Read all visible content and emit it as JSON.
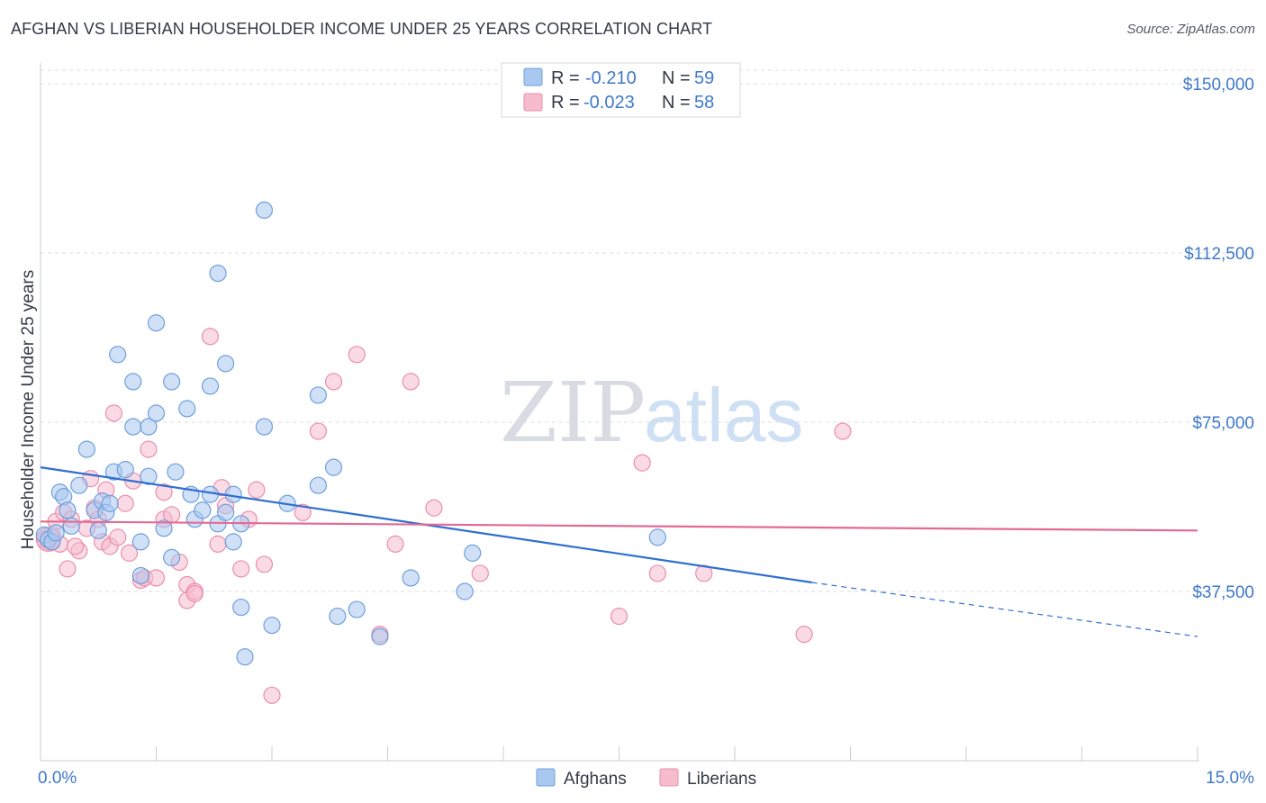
{
  "title": "AFGHAN VS LIBERIAN HOUSEHOLDER INCOME UNDER 25 YEARS CORRELATION CHART",
  "source": "Source: ZipAtlas.com",
  "watermark": {
    "zip": "ZIP",
    "atlas": "atlas"
  },
  "colors": {
    "afghans_fill": "#a9c8f0",
    "afghans_stroke": "#6f9fdc",
    "afghans_line": "#2f6fd0",
    "liberians_fill": "#f6bccd",
    "liberians_stroke": "#eb8fac",
    "liberians_line": "#e36a94",
    "grid": "#d9dde3",
    "axis_text": "#3f79c9"
  },
  "legend": {
    "r_label": "R =",
    "n_label": "N =",
    "rows": [
      {
        "r": "-0.210",
        "n": "59"
      },
      {
        "r": "-0.023",
        "n": "58"
      }
    ]
  },
  "chart_data": {
    "type": "scatter",
    "title": "AFGHAN VS LIBERIAN HOUSEHOLDER INCOME UNDER 25 YEARS CORRELATION CHART",
    "xlabel": "",
    "ylabel": "Householder Income Under 25 years",
    "xlim": [
      0,
      15
    ],
    "ylim": [
      0,
      153000
    ],
    "x_tick_labels": [
      "0.0%",
      "15.0%"
    ],
    "y_ticks": [
      37500,
      75000,
      112500,
      150000
    ],
    "y_tick_labels": [
      "$37,500",
      "$75,000",
      "$112,500",
      "$150,000"
    ],
    "grid": "horizontal dashed",
    "legend_position": "top-center",
    "series": [
      {
        "name": "Afghans",
        "r": -0.21,
        "n": 59,
        "trend": {
          "x0": 0,
          "y0": 65000,
          "x1": 10.0,
          "y1": 39500,
          "dashed_to_x": 15,
          "dashed_to_y": 27500
        },
        "points": [
          [
            0.05,
            50000
          ],
          [
            0.1,
            49000
          ],
          [
            0.15,
            48500
          ],
          [
            0.2,
            50500
          ],
          [
            0.25,
            59500
          ],
          [
            0.3,
            58500
          ],
          [
            0.35,
            55500
          ],
          [
            0.4,
            52000
          ],
          [
            0.5,
            61000
          ],
          [
            0.6,
            69000
          ],
          [
            0.7,
            55500
          ],
          [
            0.75,
            51000
          ],
          [
            0.8,
            57500
          ],
          [
            0.85,
            55000
          ],
          [
            0.9,
            57000
          ],
          [
            0.95,
            64000
          ],
          [
            1.0,
            90000
          ],
          [
            1.1,
            64500
          ],
          [
            1.2,
            74000
          ],
          [
            1.2,
            84000
          ],
          [
            1.3,
            41000
          ],
          [
            1.3,
            48500
          ],
          [
            1.4,
            74000
          ],
          [
            1.4,
            63000
          ],
          [
            1.5,
            77000
          ],
          [
            1.5,
            97000
          ],
          [
            1.6,
            51500
          ],
          [
            1.7,
            84000
          ],
          [
            1.7,
            45000
          ],
          [
            1.75,
            64000
          ],
          [
            1.9,
            78000
          ],
          [
            1.95,
            59000
          ],
          [
            2.0,
            53500
          ],
          [
            2.1,
            55500
          ],
          [
            2.2,
            83000
          ],
          [
            2.2,
            59000
          ],
          [
            2.3,
            108000
          ],
          [
            2.3,
            52500
          ],
          [
            2.4,
            88000
          ],
          [
            2.4,
            55000
          ],
          [
            2.5,
            48500
          ],
          [
            2.5,
            59000
          ],
          [
            2.6,
            34000
          ],
          [
            2.6,
            52500
          ],
          [
            2.65,
            23000
          ],
          [
            2.9,
            74000
          ],
          [
            2.9,
            122000
          ],
          [
            3.2,
            57000
          ],
          [
            3.0,
            30000
          ],
          [
            3.6,
            61000
          ],
          [
            3.6,
            81000
          ],
          [
            3.8,
            65000
          ],
          [
            3.85,
            32000
          ],
          [
            4.1,
            33500
          ],
          [
            4.4,
            27500
          ],
          [
            4.8,
            40500
          ],
          [
            5.5,
            37500
          ],
          [
            5.6,
            46000
          ],
          [
            8.0,
            49500
          ]
        ]
      },
      {
        "name": "Liberians",
        "r": -0.023,
        "n": 58,
        "trend": {
          "x0": 0,
          "y0": 53000,
          "x1": 15,
          "y1": 51000
        },
        "points": [
          [
            0.05,
            49000
          ],
          [
            0.1,
            48500
          ],
          [
            0.15,
            50000
          ],
          [
            0.2,
            53000
          ],
          [
            0.3,
            55000
          ],
          [
            0.35,
            42500
          ],
          [
            0.4,
            53500
          ],
          [
            0.5,
            46500
          ],
          [
            0.6,
            51500
          ],
          [
            0.65,
            62500
          ],
          [
            0.7,
            56000
          ],
          [
            0.75,
            53500
          ],
          [
            0.8,
            48500
          ],
          [
            0.85,
            60000
          ],
          [
            0.9,
            47500
          ],
          [
            0.95,
            77000
          ],
          [
            1.0,
            49500
          ],
          [
            1.1,
            57000
          ],
          [
            1.15,
            46000
          ],
          [
            1.2,
            62000
          ],
          [
            1.3,
            40000
          ],
          [
            1.35,
            40500
          ],
          [
            1.4,
            69000
          ],
          [
            1.5,
            40500
          ],
          [
            1.6,
            59500
          ],
          [
            1.6,
            53500
          ],
          [
            1.7,
            54500
          ],
          [
            1.8,
            44000
          ],
          [
            1.9,
            39000
          ],
          [
            1.9,
            35500
          ],
          [
            2.0,
            37500
          ],
          [
            2.0,
            37000
          ],
          [
            2.2,
            94000
          ],
          [
            2.3,
            48000
          ],
          [
            2.35,
            60500
          ],
          [
            2.4,
            56500
          ],
          [
            2.6,
            42500
          ],
          [
            2.7,
            53500
          ],
          [
            2.8,
            60000
          ],
          [
            2.9,
            43500
          ],
          [
            3.0,
            14500
          ],
          [
            3.4,
            55000
          ],
          [
            3.6,
            73000
          ],
          [
            3.8,
            84000
          ],
          [
            4.1,
            90000
          ],
          [
            4.4,
            28000
          ],
          [
            4.6,
            48000
          ],
          [
            4.8,
            84000
          ],
          [
            5.1,
            56000
          ],
          [
            5.7,
            41500
          ],
          [
            7.5,
            32000
          ],
          [
            7.8,
            66000
          ],
          [
            8.0,
            41500
          ],
          [
            8.6,
            41500
          ],
          [
            9.9,
            28000
          ],
          [
            10.4,
            73000
          ],
          [
            0.25,
            48000
          ],
          [
            0.45,
            47500
          ]
        ]
      }
    ]
  },
  "bottom_legend": [
    {
      "label": "Afghans"
    },
    {
      "label": "Liberians"
    }
  ]
}
